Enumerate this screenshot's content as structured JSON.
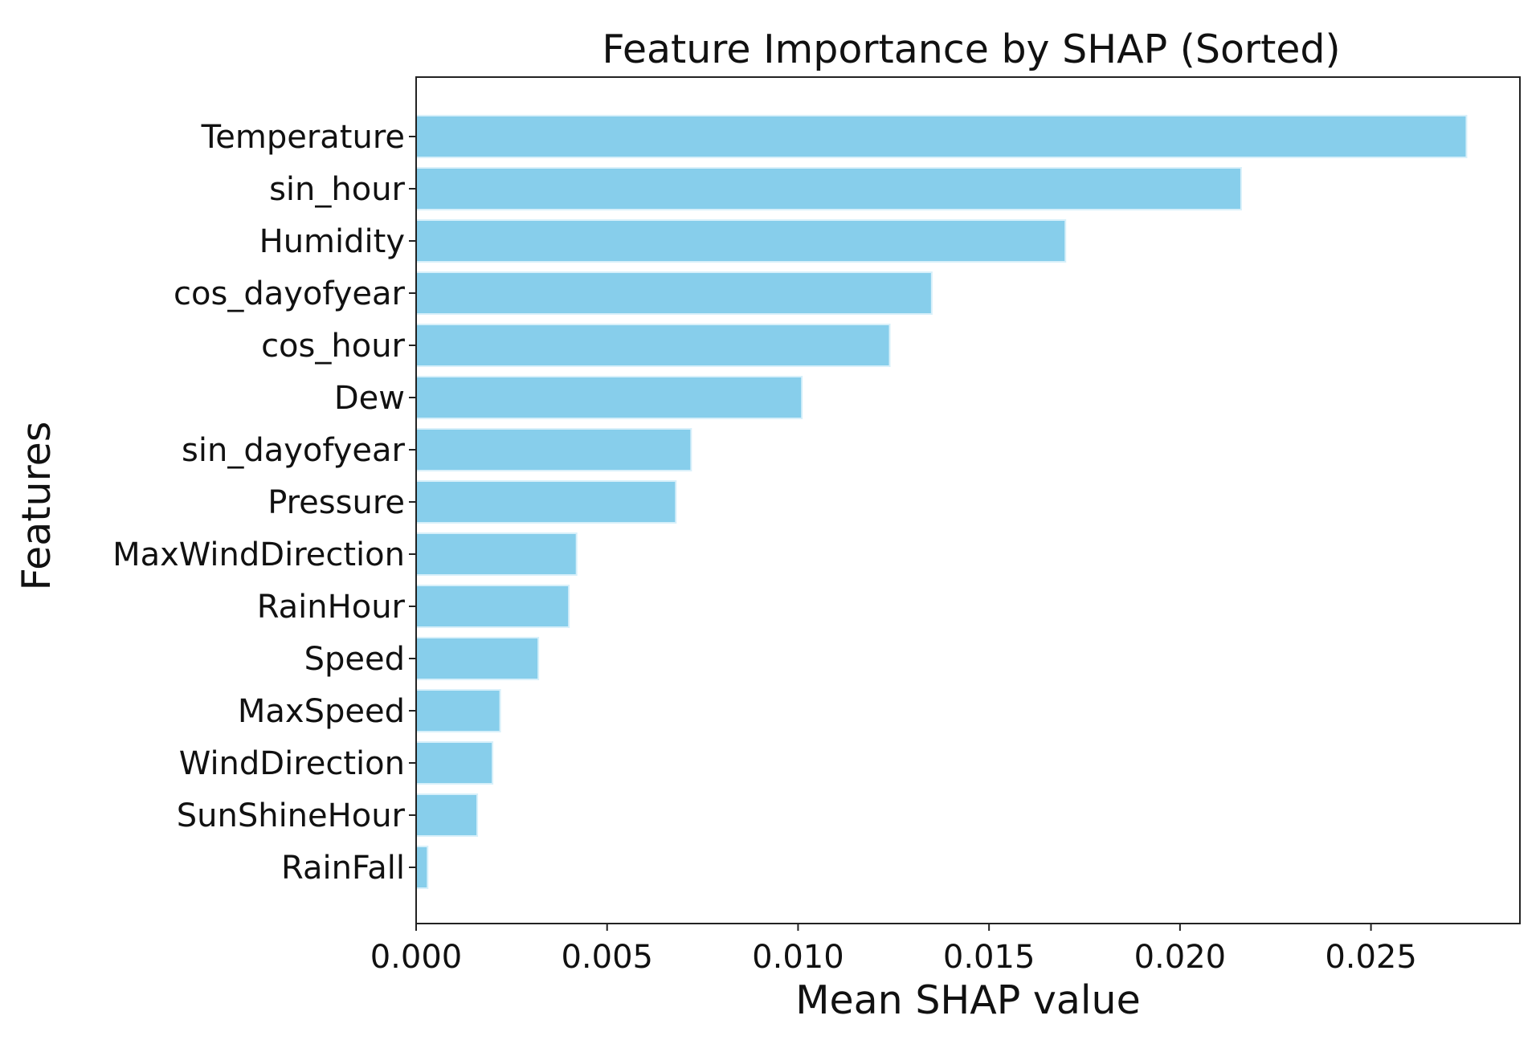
{
  "chart_data": {
    "type": "bar",
    "orientation": "horizontal",
    "title": "Feature Importance by SHAP (Sorted)",
    "xlabel": "Mean SHAP value",
    "ylabel": "Features",
    "categories": [
      "Temperature",
      "sin_hour",
      "Humidity",
      "cos_dayofyear",
      "cos_hour",
      "Dew",
      "sin_dayofyear",
      "Pressure",
      "MaxWindDirection",
      "RainHour",
      "Speed",
      "MaxSpeed",
      "WindDirection",
      "SunShineHour",
      "RainFall"
    ],
    "values": [
      0.0275,
      0.0216,
      0.017,
      0.0135,
      0.0124,
      0.0101,
      0.0072,
      0.0068,
      0.0042,
      0.004,
      0.0032,
      0.0022,
      0.002,
      0.0016,
      0.0003
    ],
    "xlim": [
      0,
      0.0289
    ],
    "xticks": [
      0.0,
      0.005,
      0.01,
      0.015,
      0.02,
      0.025
    ],
    "xtick_labels": [
      "0.000",
      "0.005",
      "0.010",
      "0.015",
      "0.020",
      "0.025"
    ],
    "bar_color": "#87ceeb",
    "grid": false,
    "legend": "none"
  }
}
